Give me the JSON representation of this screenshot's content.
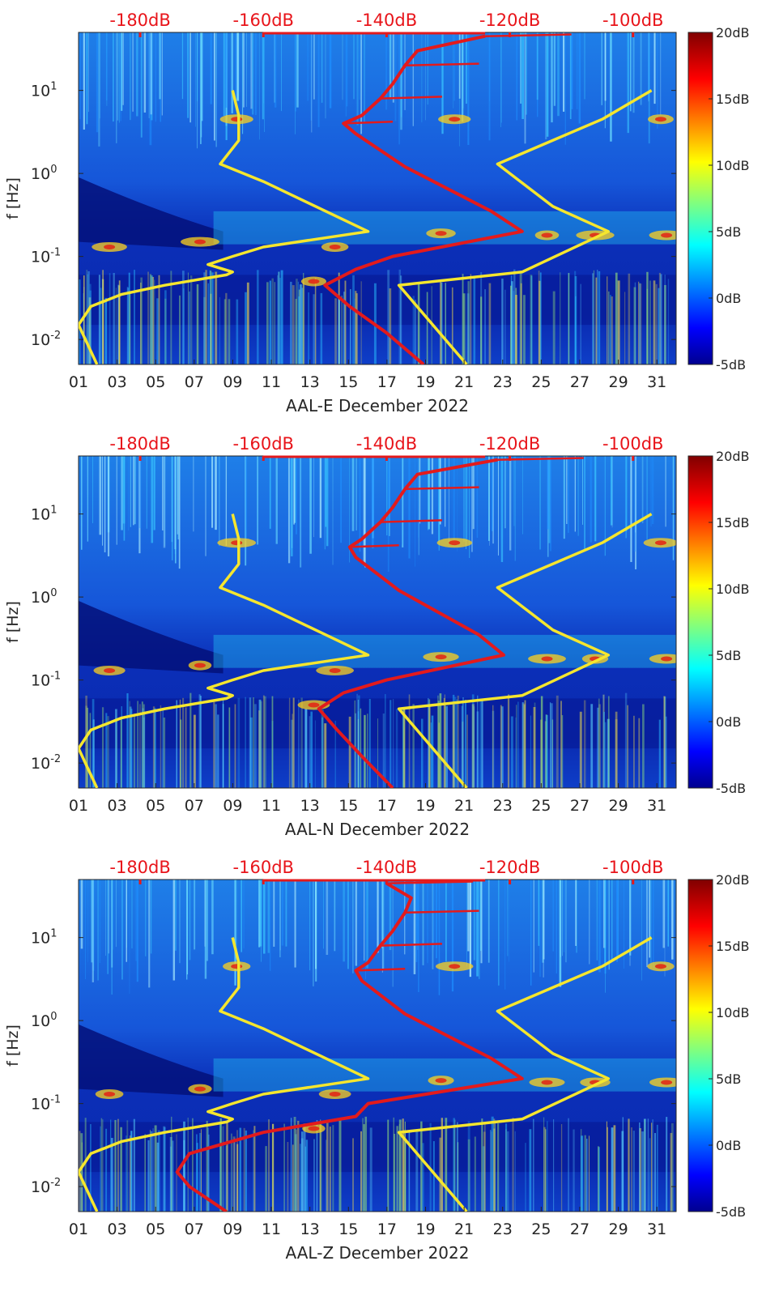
{
  "chart_data": [
    {
      "type": "heatmap",
      "xlabel": "AAL-E December 2022",
      "ylabel": "f [Hz]",
      "x_ticks": [
        "01",
        "03",
        "05",
        "07",
        "09",
        "11",
        "13",
        "15",
        "17",
        "19",
        "21",
        "23",
        "25",
        "27",
        "29",
        "31"
      ],
      "x_range_days": [
        1,
        32
      ],
      "y_scale": "log",
      "y_range_hz": [
        0.005,
        50
      ],
      "y_ticks": [
        {
          "value": 0.01,
          "base": "10",
          "exp": "-2"
        },
        {
          "value": 0.1,
          "base": "10",
          "exp": "-1"
        },
        {
          "value": 1,
          "base": "10",
          "exp": "0"
        },
        {
          "value": 10,
          "base": "10",
          "exp": "1"
        }
      ],
      "top_axis": {
        "labels": [
          "-180dB",
          "-160dB",
          "-140dB",
          "-120dB",
          "-100dB"
        ],
        "values": [
          -180,
          -160,
          -140,
          -120,
          -100
        ],
        "range_db": [
          -190,
          -93
        ]
      },
      "colorbar": {
        "labels": [
          "20dB",
          "15dB",
          "10dB",
          "5dB",
          "0dB",
          "-5dB"
        ],
        "values": [
          20,
          15,
          10,
          5,
          0,
          -5
        ],
        "colormap": "jet"
      },
      "series": [
        {
          "color": "#f5e62e",
          "axis": "top_db",
          "points": [
            [
              -187,
              0.005
            ],
            [
              -190,
              0.015
            ],
            [
              -188,
              0.025
            ],
            [
              -183,
              0.035
            ],
            [
              -176,
              0.045
            ],
            [
              -166,
              0.06
            ],
            [
              -165,
              0.065
            ],
            [
              -169,
              0.08
            ],
            [
              -165,
              0.1
            ],
            [
              -160,
              0.13
            ],
            [
              -143,
              0.2
            ],
            [
              -160,
              0.8
            ],
            [
              -167,
              1.3
            ],
            [
              -164,
              2.5
            ],
            [
              -164,
              5
            ],
            [
              -165,
              10
            ]
          ]
        },
        {
          "color": "#f5e62e",
          "axis": "top_db",
          "points": [
            [
              -127,
              0.005
            ],
            [
              -138,
              0.045
            ],
            [
              -118,
              0.065
            ],
            [
              -104,
              0.2
            ],
            [
              -113,
              0.4
            ],
            [
              -122,
              1.3
            ],
            [
              -105,
              4.5
            ],
            [
              -97,
              10
            ]
          ]
        },
        {
          "color": "#e31a1c",
          "axis": "top_db",
          "points": [
            [
              -134,
              0.005
            ],
            [
              -140,
              0.012
            ],
            [
              -146,
              0.025
            ],
            [
              -150,
              0.045
            ],
            [
              -145,
              0.07
            ],
            [
              -139,
              0.1
            ],
            [
              -118,
              0.2
            ],
            [
              -123,
              0.35
            ],
            [
              -137,
              1.2
            ],
            [
              -145,
              3
            ],
            [
              -147,
              4
            ],
            [
              -144,
              5
            ],
            [
              -141,
              8
            ],
            [
              -139,
              12
            ],
            [
              -137,
              20
            ],
            [
              -135,
              30
            ],
            [
              -124,
              45
            ]
          ]
        }
      ]
    },
    {
      "type": "heatmap",
      "xlabel": "AAL-N December 2022",
      "ylabel": "f [Hz]",
      "x_ticks": [
        "01",
        "03",
        "05",
        "07",
        "09",
        "11",
        "13",
        "15",
        "17",
        "19",
        "21",
        "23",
        "25",
        "27",
        "29",
        "31"
      ],
      "x_range_days": [
        1,
        32
      ],
      "y_scale": "log",
      "y_range_hz": [
        0.005,
        50
      ],
      "y_ticks": [
        {
          "value": 0.01,
          "base": "10",
          "exp": "-2"
        },
        {
          "value": 0.1,
          "base": "10",
          "exp": "-1"
        },
        {
          "value": 1,
          "base": "10",
          "exp": "0"
        },
        {
          "value": 10,
          "base": "10",
          "exp": "1"
        }
      ],
      "top_axis": {
        "labels": [
          "-180dB",
          "-160dB",
          "-140dB",
          "-120dB",
          "-100dB"
        ],
        "values": [
          -180,
          -160,
          -140,
          -120,
          -100
        ],
        "range_db": [
          -190,
          -93
        ]
      },
      "colorbar": {
        "labels": [
          "20dB",
          "15dB",
          "10dB",
          "5dB",
          "0dB",
          "-5dB"
        ],
        "values": [
          20,
          15,
          10,
          5,
          0,
          -5
        ],
        "colormap": "jet"
      },
      "series": [
        {
          "color": "#f5e62e",
          "axis": "top_db",
          "points": [
            [
              -187,
              0.005
            ],
            [
              -190,
              0.015
            ],
            [
              -188,
              0.025
            ],
            [
              -183,
              0.035
            ],
            [
              -176,
              0.045
            ],
            [
              -166,
              0.06
            ],
            [
              -165,
              0.065
            ],
            [
              -169,
              0.08
            ],
            [
              -165,
              0.1
            ],
            [
              -160,
              0.13
            ],
            [
              -143,
              0.2
            ],
            [
              -160,
              0.8
            ],
            [
              -167,
              1.3
            ],
            [
              -164,
              2.5
            ],
            [
              -164,
              5
            ],
            [
              -165,
              10
            ]
          ]
        },
        {
          "color": "#f5e62e",
          "axis": "top_db",
          "points": [
            [
              -127,
              0.005
            ],
            [
              -138,
              0.045
            ],
            [
              -118,
              0.065
            ],
            [
              -104,
              0.2
            ],
            [
              -113,
              0.4
            ],
            [
              -122,
              1.3
            ],
            [
              -105,
              4.5
            ],
            [
              -97,
              10
            ]
          ]
        },
        {
          "color": "#e31a1c",
          "axis": "top_db",
          "points": [
            [
              -139,
              0.005
            ],
            [
              -144,
              0.012
            ],
            [
              -148,
              0.025
            ],
            [
              -151,
              0.045
            ],
            [
              -147,
              0.07
            ],
            [
              -140,
              0.1
            ],
            [
              -121,
              0.2
            ],
            [
              -125,
              0.35
            ],
            [
              -138,
              1.2
            ],
            [
              -145,
              3
            ],
            [
              -146,
              4
            ],
            [
              -144,
              5
            ],
            [
              -141,
              8
            ],
            [
              -139,
              12
            ],
            [
              -137,
              20
            ],
            [
              -135,
              30
            ],
            [
              -122,
              45
            ]
          ]
        }
      ]
    },
    {
      "type": "heatmap",
      "xlabel": "AAL-Z December 2022",
      "ylabel": "f [Hz]",
      "x_ticks": [
        "01",
        "03",
        "05",
        "07",
        "09",
        "11",
        "13",
        "15",
        "17",
        "19",
        "21",
        "23",
        "25",
        "27",
        "29",
        "31"
      ],
      "x_range_days": [
        1,
        32
      ],
      "y_scale": "log",
      "y_range_hz": [
        0.005,
        50
      ],
      "y_ticks": [
        {
          "value": 0.01,
          "base": "10",
          "exp": "-2"
        },
        {
          "value": 0.1,
          "base": "10",
          "exp": "-1"
        },
        {
          "value": 1,
          "base": "10",
          "exp": "0"
        },
        {
          "value": 10,
          "base": "10",
          "exp": "1"
        }
      ],
      "top_axis": {
        "labels": [
          "-180dB",
          "-160dB",
          "-140dB",
          "-120dB",
          "-100dB"
        ],
        "values": [
          -180,
          -160,
          -140,
          -120,
          -100
        ],
        "range_db": [
          -190,
          -93
        ]
      },
      "colorbar": {
        "labels": [
          "20dB",
          "15dB",
          "10dB",
          "5dB",
          "0dB",
          "-5dB"
        ],
        "values": [
          20,
          15,
          10,
          5,
          0,
          -5
        ],
        "colormap": "jet"
      },
      "series": [
        {
          "color": "#f5e62e",
          "axis": "top_db",
          "points": [
            [
              -187,
              0.005
            ],
            [
              -190,
              0.015
            ],
            [
              -188,
              0.025
            ],
            [
              -183,
              0.035
            ],
            [
              -176,
              0.045
            ],
            [
              -166,
              0.06
            ],
            [
              -165,
              0.065
            ],
            [
              -169,
              0.08
            ],
            [
              -165,
              0.1
            ],
            [
              -160,
              0.13
            ],
            [
              -143,
              0.2
            ],
            [
              -160,
              0.8
            ],
            [
              -167,
              1.3
            ],
            [
              -164,
              2.5
            ],
            [
              -164,
              5
            ],
            [
              -165,
              10
            ]
          ]
        },
        {
          "color": "#f5e62e",
          "axis": "top_db",
          "points": [
            [
              -127,
              0.005
            ],
            [
              -138,
              0.045
            ],
            [
              -118,
              0.065
            ],
            [
              -104,
              0.2
            ],
            [
              -113,
              0.4
            ],
            [
              -122,
              1.3
            ],
            [
              -105,
              4.5
            ],
            [
              -97,
              10
            ]
          ]
        },
        {
          "color": "#e31a1c",
          "axis": "top_db",
          "points": [
            [
              -166,
              0.005
            ],
            [
              -172,
              0.01
            ],
            [
              -174,
              0.015
            ],
            [
              -172,
              0.025
            ],
            [
              -160,
              0.045
            ],
            [
              -145,
              0.07
            ],
            [
              -143,
              0.1
            ],
            [
              -118,
              0.2
            ],
            [
              -123,
              0.35
            ],
            [
              -137,
              1.2
            ],
            [
              -144,
              3
            ],
            [
              -145,
              4
            ],
            [
              -143,
              5
            ],
            [
              -141,
              8
            ],
            [
              -139,
              12
            ],
            [
              -137,
              20
            ],
            [
              -136,
              30
            ],
            [
              -140,
              45
            ]
          ]
        }
      ]
    }
  ]
}
